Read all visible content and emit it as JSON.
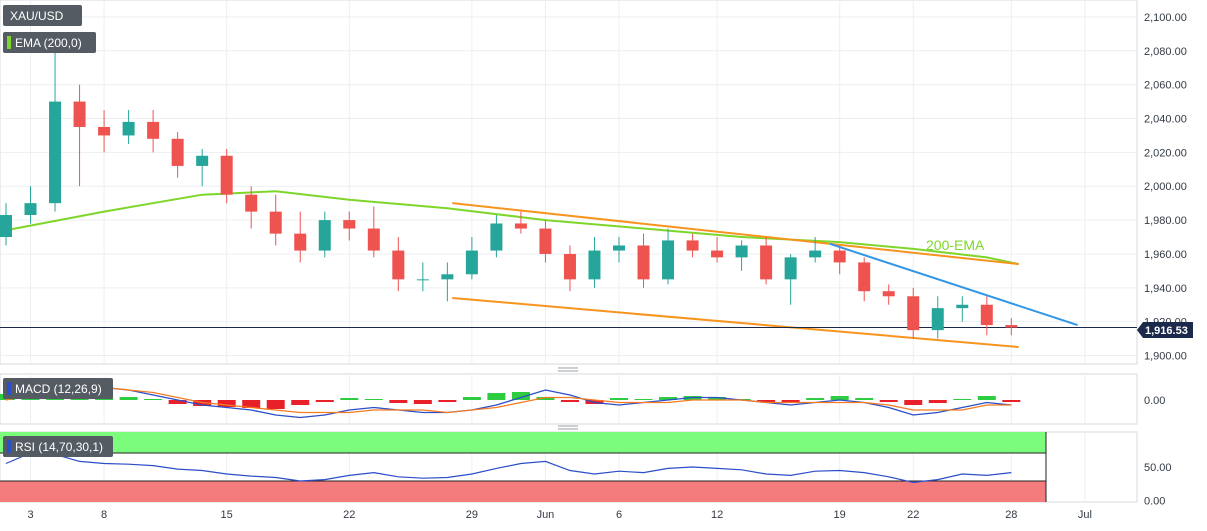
{
  "chart_data": {
    "type": "candlestick",
    "symbol": "XAU/USD",
    "panels": {
      "price": {
        "indicator_label": "EMA (200,0)",
        "ylim": [
          1895,
          2110
        ],
        "y_ticks": [
          "2,100.00",
          "2,080.00",
          "2,060.00",
          "2,040.00",
          "2,020.00",
          "2,000.00",
          "1,980.00",
          "1,960.00",
          "1,940.00",
          "1,920.00",
          "1,900.00"
        ],
        "y_tick_values": [
          2100,
          2080,
          2060,
          2040,
          2020,
          2000,
          1980,
          1960,
          1940,
          1920,
          1900
        ],
        "current_price": 1916.53,
        "current_price_label": "1,916.53",
        "annotation": "200-EMA",
        "colors": {
          "up": "#26a69a",
          "down": "#ef5350",
          "ema": "#7ed62a",
          "channel": "#f7941d",
          "resistance": "#2f96e8",
          "price_line": "#1b2a4a"
        }
      },
      "macd": {
        "label": "MACD (12,26,9)",
        "y_ticks": [
          "0.00"
        ],
        "colors": {
          "macd": "#2b4ec9",
          "signal": "#f47b20",
          "hist_up": "#2ecc40",
          "hist_down": "#e8202a"
        }
      },
      "rsi": {
        "label": "RSI (14,70,30,1)",
        "y_ticks": [
          "50.00",
          "0.00"
        ],
        "ylim": [
          0,
          100
        ],
        "overbought": 70,
        "oversold": 30,
        "colors": {
          "line": "#2b4ec9",
          "overbought_zone": "#7cfc7c",
          "oversold_zone": "#f47c7c"
        }
      }
    },
    "x_ticks": [
      {
        "label": "3",
        "index": 1
      },
      {
        "label": "8",
        "index": 4
      },
      {
        "label": "15",
        "index": 9
      },
      {
        "label": "22",
        "index": 14
      },
      {
        "label": "29",
        "index": 19
      },
      {
        "label": "Jun",
        "index": 22
      },
      {
        "label": "6",
        "index": 25
      },
      {
        "label": "12",
        "index": 29
      },
      {
        "label": "19",
        "index": 34
      },
      {
        "label": "22",
        "index": 37
      },
      {
        "label": "28",
        "index": 41
      },
      {
        "label": "Jul",
        "index": 44
      }
    ],
    "candles": [
      [
        1970,
        1990,
        1965,
        1983
      ],
      [
        1983,
        2000,
        1978,
        1990
      ],
      [
        1990,
        2082,
        1985,
        2050
      ],
      [
        2050,
        2060,
        2000,
        2035
      ],
      [
        2035,
        2045,
        2020,
        2030
      ],
      [
        2030,
        2045,
        2025,
        2038
      ],
      [
        2038,
        2045,
        2020,
        2028
      ],
      [
        2028,
        2032,
        2005,
        2012
      ],
      [
        2012,
        2022,
        2000,
        2018
      ],
      [
        2018,
        2022,
        1990,
        1995
      ],
      [
        1995,
        2000,
        1975,
        1985
      ],
      [
        1985,
        1995,
        1965,
        1972
      ],
      [
        1972,
        1985,
        1955,
        1962
      ],
      [
        1962,
        1985,
        1958,
        1980
      ],
      [
        1980,
        1985,
        1968,
        1975
      ],
      [
        1975,
        1988,
        1958,
        1962
      ],
      [
        1962,
        1970,
        1938,
        1945
      ],
      [
        1945,
        1955,
        1938,
        1945
      ],
      [
        1945,
        1955,
        1932,
        1948
      ],
      [
        1948,
        1970,
        1945,
        1962
      ],
      [
        1962,
        1983,
        1958,
        1978
      ],
      [
        1978,
        1985,
        1972,
        1975
      ],
      [
        1975,
        1980,
        1955,
        1960
      ],
      [
        1960,
        1965,
        1938,
        1945
      ],
      [
        1945,
        1970,
        1940,
        1962
      ],
      [
        1962,
        1970,
        1955,
        1965
      ],
      [
        1965,
        1972,
        1940,
        1945
      ],
      [
        1945,
        1975,
        1942,
        1968
      ],
      [
        1968,
        1972,
        1958,
        1962
      ],
      [
        1962,
        1970,
        1955,
        1958
      ],
      [
        1958,
        1968,
        1950,
        1965
      ],
      [
        1965,
        1970,
        1942,
        1945
      ],
      [
        1945,
        1960,
        1930,
        1958
      ],
      [
        1958,
        1970,
        1955,
        1962
      ],
      [
        1962,
        1965,
        1948,
        1955
      ],
      [
        1955,
        1958,
        1932,
        1938
      ],
      [
        1938,
        1942,
        1930,
        1935
      ],
      [
        1935,
        1940,
        1910,
        1915
      ],
      [
        1915,
        1935,
        1910,
        1928
      ],
      [
        1928,
        1935,
        1920,
        1930
      ],
      [
        1930,
        1935,
        1912,
        1918
      ],
      [
        1918,
        1922,
        1912,
        1916.53
      ]
    ],
    "ema200": [
      [
        0,
        1974
      ],
      [
        4,
        1985
      ],
      [
        8,
        1995
      ],
      [
        11,
        1997
      ],
      [
        14,
        1992
      ],
      [
        18,
        1987
      ],
      [
        22,
        1980
      ],
      [
        26,
        1975
      ],
      [
        30,
        1970
      ],
      [
        34,
        1967
      ],
      [
        37,
        1963
      ],
      [
        40,
        1958
      ],
      [
        41.3,
        1954
      ]
    ],
    "channel_upper": [
      [
        18.2,
        1990
      ],
      [
        41.3,
        1954
      ]
    ],
    "channel_lower": [
      [
        18.2,
        1934
      ],
      [
        41.3,
        1905
      ]
    ],
    "resistance": [
      [
        33.6,
        1966
      ],
      [
        43.7,
        1918
      ]
    ],
    "macd_hist": [
      0.6,
      0.8,
      1.2,
      0.9,
      0.5,
      0.3,
      0.1,
      -0.4,
      -0.6,
      -0.7,
      -0.8,
      -0.9,
      -0.5,
      -0.2,
      0.2,
      0.1,
      -0.3,
      -0.4,
      -0.2,
      0.3,
      0.7,
      0.8,
      0.3,
      -0.2,
      -0.4,
      0.2,
      0.1,
      0.3,
      0.4,
      0.3,
      0.1,
      -0.2,
      -0.3,
      0.2,
      0.4,
      0.2,
      -0.2,
      -0.5,
      -0.3,
      0.1,
      0.4,
      -0.2
    ],
    "macd_line": [
      2,
      4,
      7,
      6,
      5,
      4,
      2,
      0,
      -2,
      -3,
      -4,
      -6,
      -7,
      -6,
      -4,
      -3,
      -4,
      -5,
      -5,
      -4,
      -2,
      1,
      4,
      2,
      -1,
      -2,
      -1,
      0,
      1,
      1,
      0,
      -1,
      -2,
      -1,
      0,
      -1,
      -3,
      -6,
      -5,
      -3,
      -1,
      -2
    ],
    "macd_signal": [
      0,
      2,
      4,
      5,
      5,
      4,
      3,
      1,
      -1,
      -2,
      -3,
      -4,
      -5,
      -5,
      -5,
      -4,
      -4,
      -4,
      -5,
      -4,
      -3,
      -1,
      1,
      1,
      0,
      -1,
      -1,
      -1,
      0,
      0,
      0,
      -1,
      -1,
      -1,
      -1,
      -1,
      -2,
      -4,
      -4,
      -4,
      -2,
      -2
    ],
    "rsi": [
      55,
      70,
      68,
      58,
      55,
      54,
      52,
      47,
      45,
      40,
      37,
      35,
      30,
      32,
      38,
      42,
      36,
      34,
      35,
      40,
      48,
      55,
      58,
      45,
      40,
      44,
      42,
      48,
      50,
      48,
      46,
      40,
      38,
      44,
      45,
      42,
      36,
      28,
      32,
      40,
      38,
      42
    ]
  }
}
